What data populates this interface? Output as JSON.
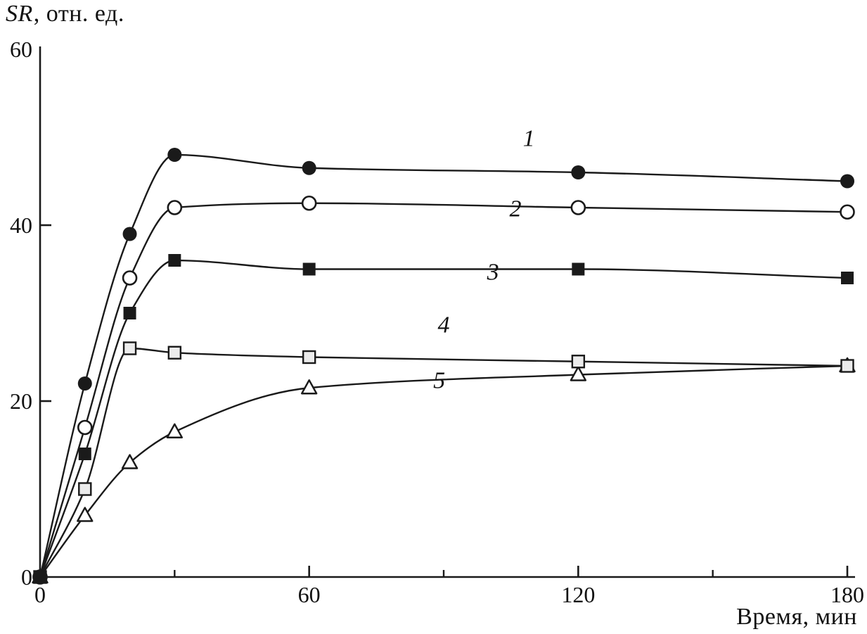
{
  "figure": {
    "background": "#ffffff",
    "line_color": "#1a1a1a",
    "open_marker_fill": "#ffffff",
    "gray_marker_fill": "#ececec"
  },
  "chart_data": {
    "type": "line",
    "title": "",
    "ylabel": "SR, отн. ед.",
    "ylabel_parts": {
      "italic": "SR",
      "normal": ", отн. ед."
    },
    "xlabel": "Время, мин",
    "xlim": [
      0,
      180
    ],
    "ylim": [
      0,
      60
    ],
    "x_major_ticks": [
      0,
      60,
      120,
      180
    ],
    "x_minor_ticks": [
      30,
      90,
      150
    ],
    "y_major_ticks": [
      0,
      20,
      40,
      60
    ],
    "grid": false,
    "legend_position": "inline-curve-labels",
    "x": [
      0,
      10,
      20,
      30,
      60,
      120,
      180
    ],
    "series": [
      {
        "name": "1",
        "marker": "circle-filled",
        "values": [
          0,
          22,
          39,
          48,
          46.5,
          46,
          45
        ],
        "label": {
          "text": "1",
          "x": 109,
          "y": 49
        }
      },
      {
        "name": "2",
        "marker": "circle-open",
        "values": [
          0,
          17,
          34,
          42,
          42.5,
          42,
          41.5
        ],
        "label": {
          "text": "2",
          "x": 106,
          "y": 41
        }
      },
      {
        "name": "3",
        "marker": "square-filled",
        "values": [
          0,
          14,
          30,
          36,
          35,
          35,
          34
        ],
        "label": {
          "text": "3",
          "x": 101,
          "y": 33.8
        }
      },
      {
        "name": "4",
        "marker": "square-open",
        "values": [
          0,
          10,
          26,
          25.5,
          25,
          24.5,
          24
        ],
        "label": {
          "text": "4",
          "x": 90,
          "y": 27.8
        }
      },
      {
        "name": "5",
        "marker": "triangle-open",
        "values": [
          0,
          7,
          13,
          16.5,
          21.5,
          23,
          24
        ],
        "label": {
          "text": "5",
          "x": 89,
          "y": 21.5
        }
      }
    ]
  }
}
